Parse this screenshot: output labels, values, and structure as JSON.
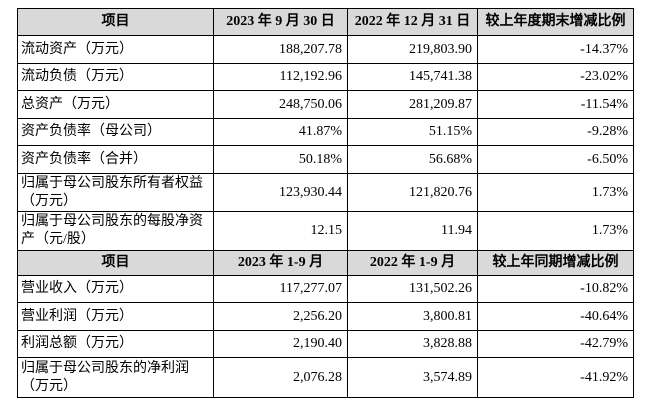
{
  "colors": {
    "header_background": "#d9d9d9",
    "border": "#000000",
    "text": "#000000"
  },
  "table": {
    "sections": [
      {
        "header": {
          "item": "项目",
          "current": "2023 年 9 月 30 日",
          "prior": "2022 年 12 月 31 日",
          "change": "较上年度期末增减比例"
        },
        "rows": [
          {
            "label": [
              "流动资产（万元）"
            ],
            "current": "188,207.78",
            "prior": "219,803.90",
            "change": "-14.37%"
          },
          {
            "label": [
              "流动负债（万元）"
            ],
            "current": "112,192.96",
            "prior": "145,741.38",
            "change": "-23.02%"
          },
          {
            "label": [
              "总资产（万元）"
            ],
            "current": "248,750.06",
            "prior": "281,209.87",
            "change": "-11.54%"
          },
          {
            "label": [
              "资产负债率（母公司）"
            ],
            "current": "41.87%",
            "prior": "51.15%",
            "change": "-9.28%"
          },
          {
            "label": [
              "资产负债率（合并）"
            ],
            "current": "50.18%",
            "prior": "56.68%",
            "change": "-6.50%"
          },
          {
            "label": [
              "归属于母公司股东所有者权益",
              "（万元）"
            ],
            "current": "123,930.44",
            "prior": "121,820.76",
            "change": "1.73%"
          },
          {
            "label": [
              "归属于母公司股东的每股净资",
              "产（元/股）"
            ],
            "current": "12.15",
            "prior": "11.94",
            "change": "1.73%"
          }
        ]
      },
      {
        "header": {
          "item": "项目",
          "current": "2023 年 1-9 月",
          "prior": "2022 年 1-9 月",
          "change": "较上年同期增减比例"
        },
        "rows": [
          {
            "label": [
              "营业收入（万元）"
            ],
            "current": "117,277.07",
            "prior": "131,502.26",
            "change": "-10.82%"
          },
          {
            "label": [
              "营业利润（万元）"
            ],
            "current": "2,256.20",
            "prior": "3,800.81",
            "change": "-40.64%"
          },
          {
            "label": [
              "利润总额（万元）"
            ],
            "current": "2,190.40",
            "prior": "3,828.88",
            "change": "-42.79%"
          },
          {
            "label": [
              "归属于母公司股东的净利润",
              "（万元）"
            ],
            "current": "2,076.28",
            "prior": "3,574.89",
            "change": "-41.92%"
          }
        ]
      }
    ]
  }
}
